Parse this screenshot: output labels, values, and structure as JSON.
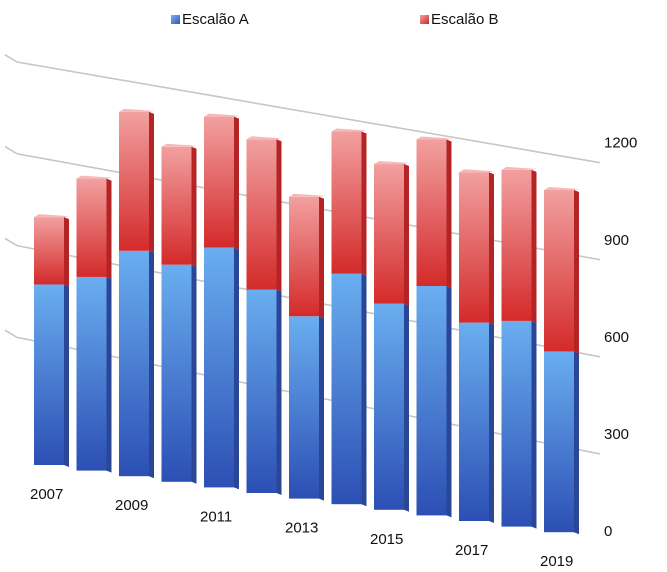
{
  "chart_data": {
    "type": "bar",
    "stacked": true,
    "view": "3d-perspective",
    "categories": [
      "2007",
      "2008",
      "2009",
      "2010",
      "2011",
      "2012",
      "2013",
      "2014",
      "2015",
      "2016",
      "2017",
      "2018",
      "2019"
    ],
    "x_tick_labels": [
      "2007",
      "2009",
      "2011",
      "2013",
      "2015",
      "2017",
      "2019"
    ],
    "series": [
      {
        "name": "Escalão A",
        "color": "#3f6fd0",
        "values": [
          590,
          630,
          730,
          700,
          770,
          650,
          580,
          730,
          650,
          720,
          620,
          640,
          560
        ]
      },
      {
        "name": "Escalão B",
        "color": "#d63a3a",
        "values": [
          220,
          320,
          450,
          380,
          420,
          480,
          380,
          450,
          440,
          460,
          470,
          470,
          500
        ]
      }
    ],
    "y_ticks": [
      0,
      300,
      600,
      900,
      1200
    ],
    "ylim": [
      0,
      1200
    ],
    "y_axis_side": "right",
    "legend_position": "top",
    "grid": true,
    "title": "",
    "xlabel": "",
    "ylabel": ""
  }
}
